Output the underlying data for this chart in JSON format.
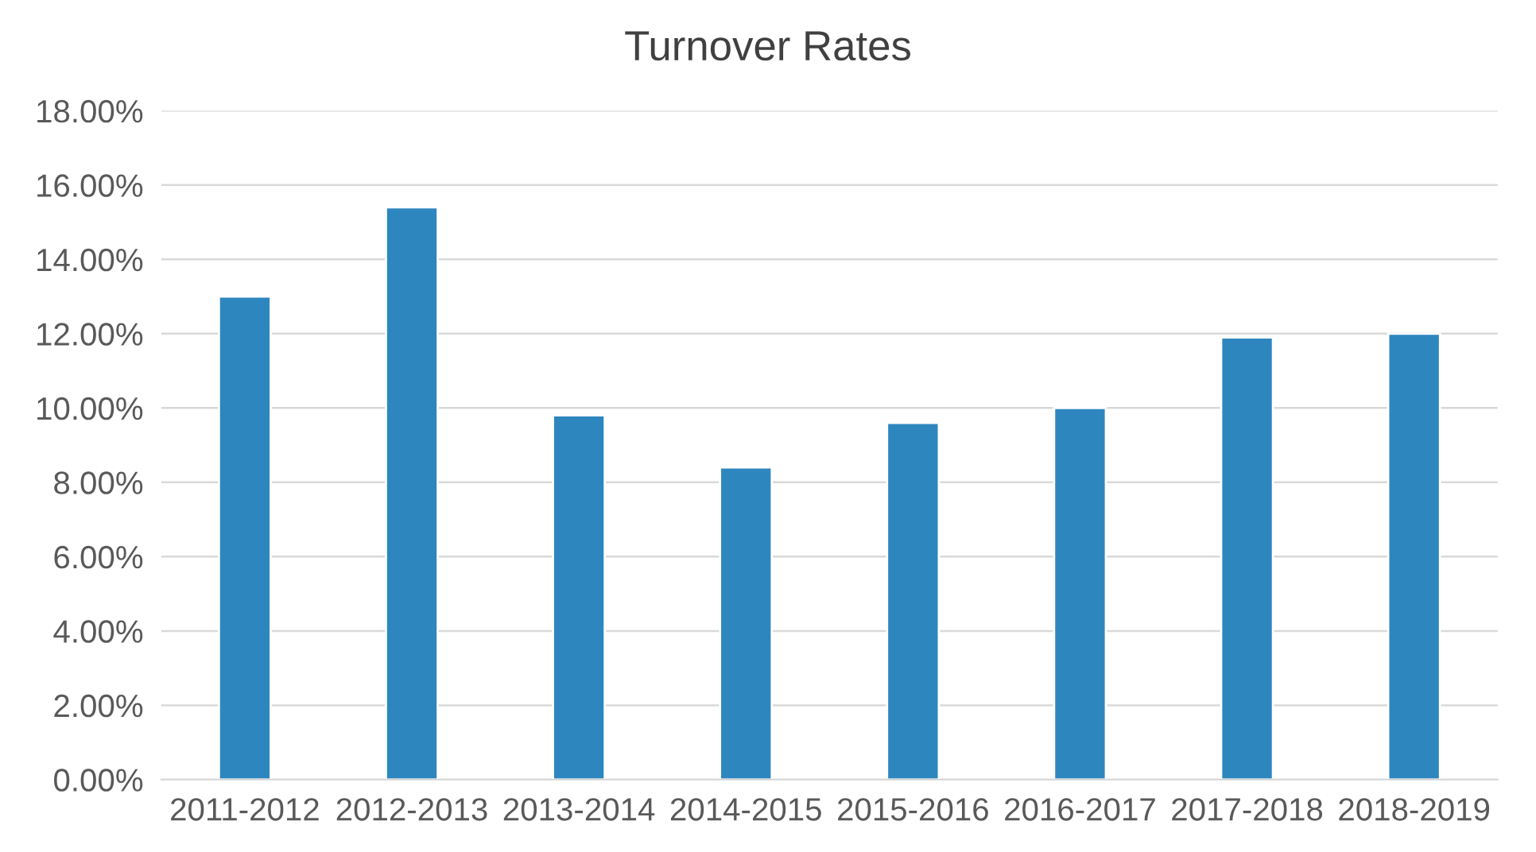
{
  "chart_data": {
    "type": "bar",
    "title": "Turnover Rates",
    "categories": [
      "2011-2012",
      "2012-2013",
      "2013-2014",
      "2014-2015",
      "2015-2016",
      "2016-2017",
      "2017-2018",
      "2018-2019"
    ],
    "values": [
      13.0,
      15.4,
      9.8,
      8.4,
      9.6,
      10.0,
      11.9,
      12.0
    ],
    "color": "#2e86bf",
    "ylim": [
      0,
      18
    ],
    "yticks": [
      {
        "value": 0,
        "label": "0.00%"
      },
      {
        "value": 2,
        "label": "2.00%"
      },
      {
        "value": 4,
        "label": "4.00%"
      },
      {
        "value": 6,
        "label": "6.00%"
      },
      {
        "value": 8,
        "label": "8.00%"
      },
      {
        "value": 10,
        "label": "10.00%"
      },
      {
        "value": 12,
        "label": "12.00%"
      },
      {
        "value": 14,
        "label": "14.00%"
      },
      {
        "value": 16,
        "label": "16.00%"
      },
      {
        "value": 18,
        "label": "18.00%"
      }
    ],
    "grid": "y"
  }
}
